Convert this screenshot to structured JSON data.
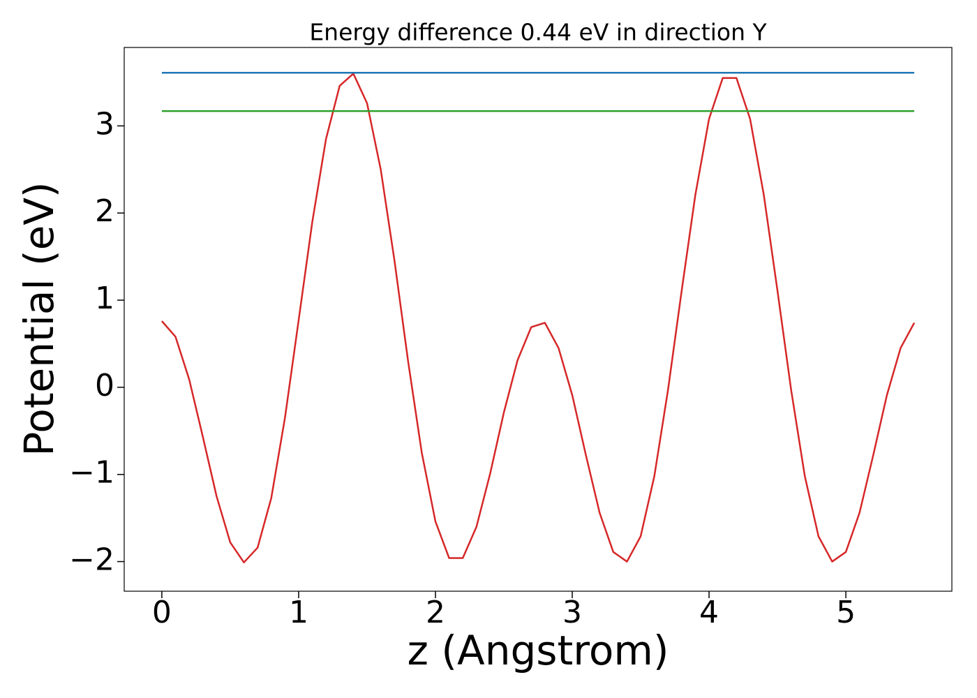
{
  "chart_data": {
    "type": "line",
    "title": "Energy difference 0.44 eV in direction Y",
    "xlabel": "z (Angstrom)",
    "ylabel": "Potential (eV)",
    "xlim": [
      -0.275,
      5.775
    ],
    "ylim": [
      -2.34,
      3.9
    ],
    "xticks": [
      0,
      1,
      2,
      3,
      4,
      5
    ],
    "yticks": [
      {
        "value": -2,
        "label": "−2"
      },
      {
        "value": -1,
        "label": "−1"
      },
      0,
      1,
      2,
      3
    ],
    "grid": false,
    "series": [
      {
        "color": "#d62728",
        "x": [
          0,
          0.1,
          0.2,
          0.3,
          0.4,
          0.5,
          0.6,
          0.7,
          0.8,
          0.9,
          1.0,
          1.1,
          1.2,
          1.3,
          1.4,
          1.5,
          1.6,
          1.7,
          1.8,
          1.9,
          2.0,
          2.1,
          2.2,
          2.3,
          2.4,
          2.5,
          2.6,
          2.7,
          2.8,
          2.9,
          3.0,
          3.1,
          3.2,
          3.3,
          3.4,
          3.5,
          3.6,
          3.7,
          3.8,
          3.9,
          4.0,
          4.1,
          4.2,
          4.3,
          4.4,
          4.5,
          4.6,
          4.7,
          4.8,
          4.9,
          5.0,
          5.1,
          5.2,
          5.3,
          5.4,
          5.5
        ],
        "values": [
          0.76,
          0.58,
          0.09,
          -0.57,
          -1.25,
          -1.78,
          -2.01,
          -1.84,
          -1.27,
          -0.35,
          0.77,
          1.9,
          2.85,
          3.46,
          3.6,
          3.26,
          2.5,
          1.46,
          0.3,
          -0.75,
          -1.54,
          -1.96,
          -1.96,
          -1.6,
          -0.99,
          -0.29,
          0.31,
          0.69,
          0.74,
          0.45,
          -0.09,
          -0.78,
          -1.44,
          -1.89,
          -2.0,
          -1.71,
          -1.02,
          -0.03,
          1.11,
          2.21,
          3.08,
          3.55,
          3.55,
          3.08,
          2.21,
          1.11,
          -0.03,
          -1.02,
          -1.71,
          -2.0,
          -1.89,
          -1.44,
          -0.78,
          -0.09,
          0.45,
          0.74
        ]
      },
      {
        "color": "#1f77b4",
        "x": [
          0,
          5.5
        ],
        "values": [
          3.61,
          3.61
        ]
      },
      {
        "color": "#2ca02c",
        "x": [
          0,
          5.5
        ],
        "values": [
          3.17,
          3.17
        ]
      }
    ]
  }
}
